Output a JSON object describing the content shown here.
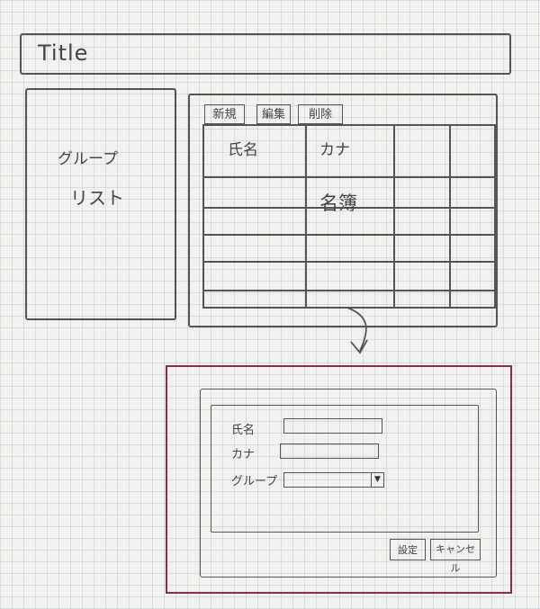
{
  "header": {
    "title": "Title"
  },
  "sidebar": {
    "line1": "グループ",
    "line2": "リスト"
  },
  "toolbar": {
    "new_label": "新規",
    "edit_label": "編集",
    "delete_label": "削除"
  },
  "table": {
    "columns": [
      "氏名",
      "カナ",
      "",
      ""
    ],
    "cell_text": "名簿"
  },
  "dialog": {
    "name_label": "氏名",
    "kana_label": "カナ",
    "group_label": "グループ",
    "name_value": "",
    "kana_value": "",
    "group_value": "",
    "ok_label": "設定",
    "cancel_label": "キャンセル"
  },
  "colors": {
    "ink": "#555555",
    "frame": "#8a2a4e",
    "paper": "#f1f2ee"
  },
  "icons": {
    "arrow": "curved-down-arrow-icon",
    "dropdown": "dropdown-arrow-icon"
  }
}
